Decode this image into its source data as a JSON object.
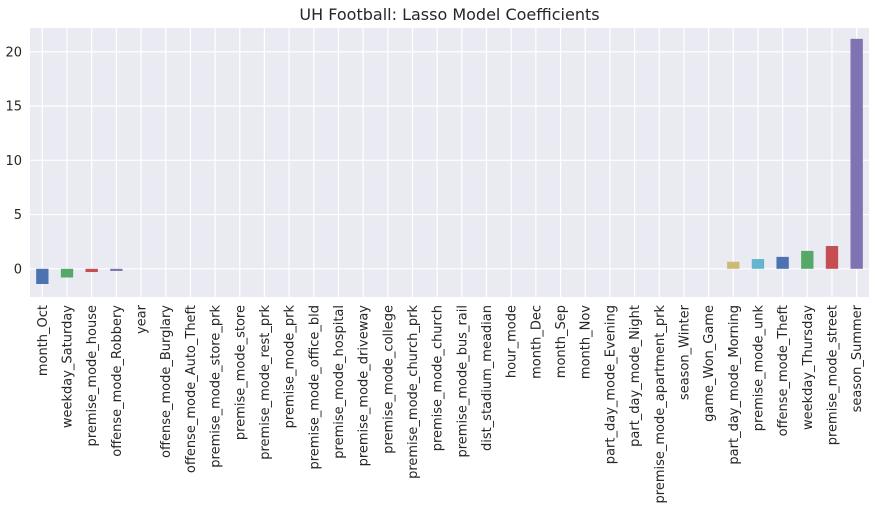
{
  "chart_data": {
    "type": "bar",
    "title": "UH Football: Lasso Model Coefficients",
    "xlabel": "",
    "ylabel": "",
    "ylim": [
      -2.6,
      22.2
    ],
    "yticks": [
      0,
      5,
      10,
      15,
      20
    ],
    "grid": true,
    "legend": "none",
    "categories": [
      "month_Oct",
      "weekday_Saturday",
      "premise_mode_house",
      "offense_mode_Robbery",
      "year",
      "offense_mode_Burglary",
      "offense_mode_Auto_Theft",
      "premise_mode_store_prk",
      "premise_mode_store",
      "premise_mode_rest_prk",
      "premise_mode_prk",
      "premise_mode_office_bld",
      "premise_mode_hospital",
      "premise_mode_driveway",
      "premise_mode_college",
      "premise_mode_church_prk",
      "premise_mode_church",
      "premise_mode_bus_rail",
      "dist_stadium_meadian",
      "hour_mode",
      "month_Dec",
      "month_Sep",
      "month_Nov",
      "part_day_mode_Evening",
      "part_day_mode_Night",
      "premise_mode_apartment_prk",
      "season_Winter",
      "game_Won_Game",
      "part_day_mode_Morning",
      "premise_mode_unk",
      "offense_mode_Theft",
      "weekday_Thursday",
      "premise_mode_street",
      "season_Summer"
    ],
    "values": [
      -1.4,
      -0.8,
      -0.3,
      -0.2,
      0,
      0,
      0,
      0,
      0,
      0,
      0,
      0,
      0,
      0,
      0,
      0,
      0,
      0,
      0,
      0,
      0,
      0,
      0,
      0,
      0,
      0,
      0,
      0,
      0.65,
      0.9,
      1.1,
      1.65,
      2.1,
      21.2
    ],
    "palette": [
      "#4c72b0",
      "#55a868",
      "#c44e52",
      "#8172b2",
      "#ccb974",
      "#64b5cd"
    ],
    "background_color": "#eaeaf2",
    "grid_color": "#ffffff"
  }
}
